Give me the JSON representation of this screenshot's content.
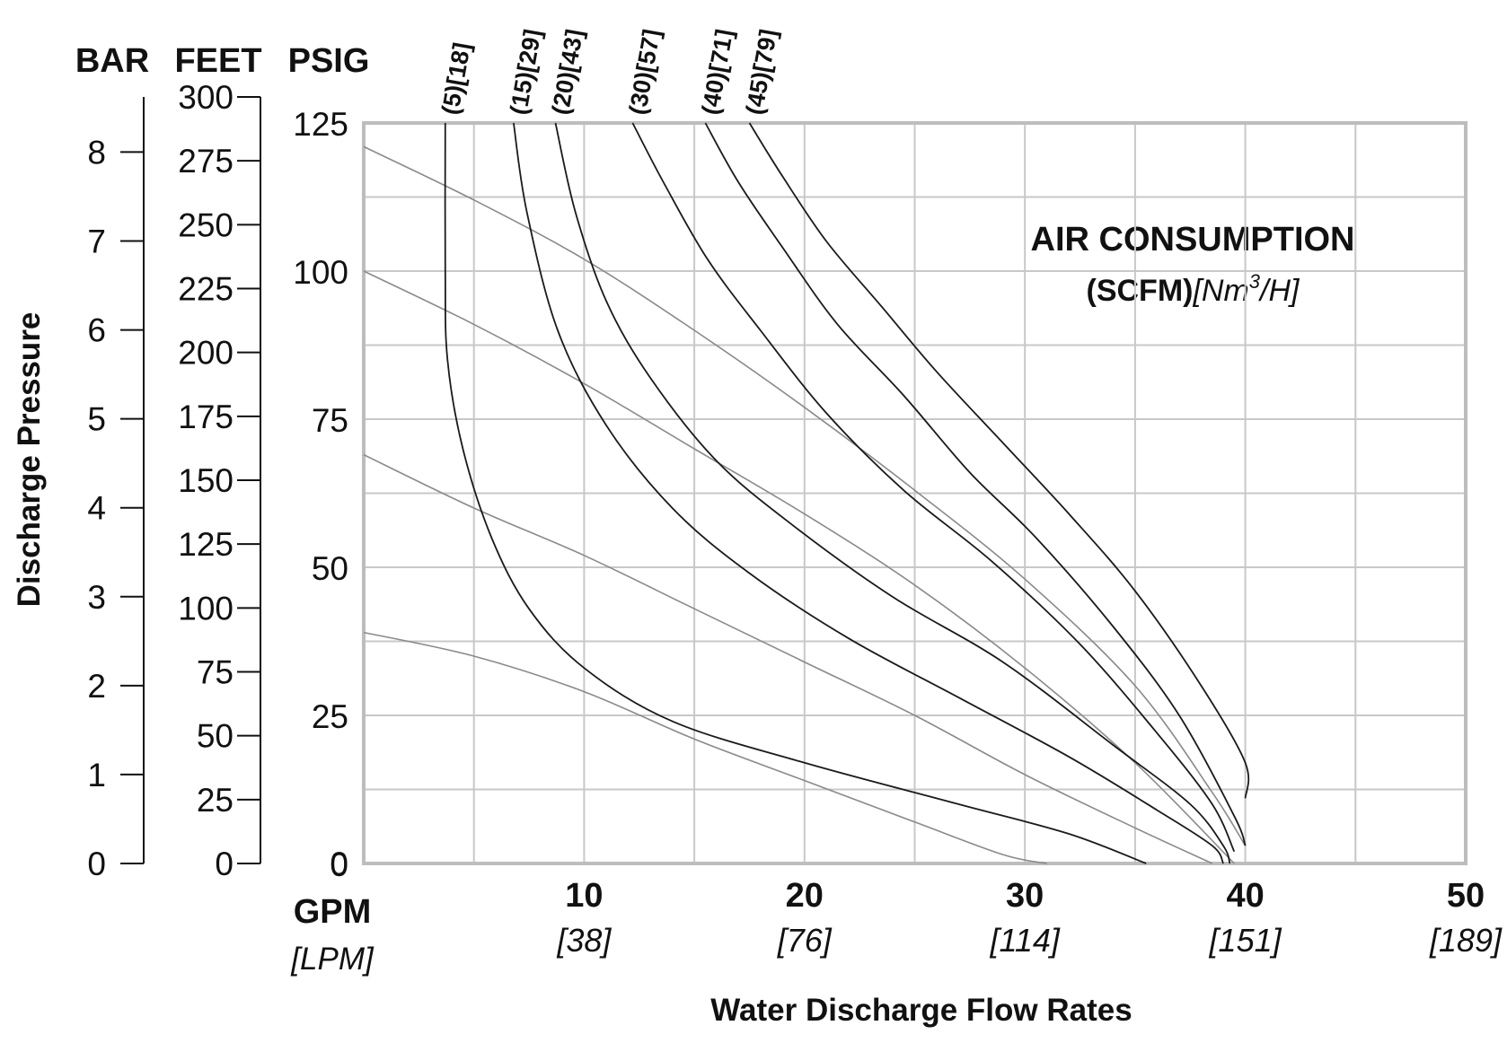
{
  "chart_data": {
    "type": "line",
    "title": "AIR CONSUMPTION",
    "title_units_prefix": "(SCFM)",
    "title_units_suffix": "[Nm",
    "title_units_sup": "3",
    "title_units_end": "/H]",
    "xlabel": "Water Discharge Flow Rates",
    "ylabel": "Discharge Pressure",
    "x_unit_primary": "GPM",
    "x_unit_secondary": "[LPM]",
    "xlim": [
      0,
      50
    ],
    "ylim": [
      0,
      125
    ],
    "grid": true,
    "x_ticks": [
      {
        "value": 10,
        "label": "10",
        "sub": "[38]"
      },
      {
        "value": 20,
        "label": "20",
        "sub": "[76]"
      },
      {
        "value": 30,
        "label": "30",
        "sub": "[114]"
      },
      {
        "value": 40,
        "label": "40",
        "sub": "[151]"
      },
      {
        "value": 50,
        "label": "50",
        "sub": "[189]"
      }
    ],
    "y_axes": [
      {
        "name": "BAR",
        "max": 8.62,
        "ticks": [
          0,
          1,
          2,
          3,
          4,
          5,
          6,
          7,
          8
        ]
      },
      {
        "name": "FEET",
        "max": 300,
        "ticks": [
          0,
          25,
          50,
          75,
          100,
          125,
          150,
          175,
          200,
          225,
          250,
          275,
          300
        ]
      },
      {
        "name": "PSIG",
        "max": 125,
        "ticks": [
          0,
          25,
          50,
          75,
          100,
          125
        ]
      }
    ],
    "air_curves": [
      {
        "name": "(5)[18]",
        "points": [
          [
            3.7,
            125
          ],
          [
            3.7,
            100
          ],
          [
            3.8,
            85
          ],
          [
            4.5,
            70
          ],
          [
            5.8,
            55
          ],
          [
            7.5,
            43
          ],
          [
            10,
            33
          ],
          [
            14,
            24
          ],
          [
            20,
            17
          ],
          [
            27,
            10
          ],
          [
            32,
            5
          ],
          [
            35.5,
            0
          ]
        ]
      },
      {
        "name": "(15)[29]",
        "points": [
          [
            6.8,
            125
          ],
          [
            7.4,
            110
          ],
          [
            8.8,
            90
          ],
          [
            11,
            74
          ],
          [
            14,
            60
          ],
          [
            17.5,
            49
          ],
          [
            22,
            38
          ],
          [
            27,
            28
          ],
          [
            32,
            18
          ],
          [
            36,
            9
          ],
          [
            38.5,
            3
          ],
          [
            39,
            0
          ]
        ]
      },
      {
        "name": "(20)[43]",
        "points": [
          [
            8.7,
            125
          ],
          [
            9.6,
            110
          ],
          [
            11,
            95
          ],
          [
            13,
            82
          ],
          [
            16,
            68
          ],
          [
            19.5,
            57
          ],
          [
            24,
            45
          ],
          [
            29,
            34
          ],
          [
            34,
            20
          ],
          [
            37.5,
            10
          ],
          [
            39,
            3
          ],
          [
            39.3,
            0
          ]
        ]
      },
      {
        "name": "(30)[57]",
        "points": [
          [
            12.2,
            125
          ],
          [
            13.6,
            115
          ],
          [
            15.6,
            102
          ],
          [
            18,
            90
          ],
          [
            21,
            76
          ],
          [
            24.5,
            63
          ],
          [
            28.5,
            51
          ],
          [
            32.5,
            37
          ],
          [
            36,
            22
          ],
          [
            38.5,
            10
          ],
          [
            39.5,
            2
          ]
        ]
      },
      {
        "name": "(40)[71]",
        "points": [
          [
            15.5,
            125
          ],
          [
            17,
            115
          ],
          [
            19,
            104
          ],
          [
            21.5,
            91
          ],
          [
            24.5,
            79
          ],
          [
            27.5,
            66
          ],
          [
            30.5,
            55
          ],
          [
            34,
            40
          ],
          [
            37,
            25
          ],
          [
            39.5,
            8
          ],
          [
            40,
            3
          ]
        ]
      },
      {
        "name": "(45)[79]",
        "points": [
          [
            17.5,
            125
          ],
          [
            19,
            116
          ],
          [
            21,
            105
          ],
          [
            23.5,
            94
          ],
          [
            26,
            83
          ],
          [
            29,
            71
          ],
          [
            32,
            59
          ],
          [
            35,
            46
          ],
          [
            38,
            30
          ],
          [
            40,
            17
          ],
          [
            40,
            11
          ]
        ]
      }
    ],
    "power_curves": [
      {
        "points": [
          [
            0,
            121
          ],
          [
            5,
            112
          ],
          [
            10,
            102
          ],
          [
            15,
            90
          ],
          [
            20,
            77
          ],
          [
            25,
            63
          ],
          [
            30,
            48
          ],
          [
            35,
            30
          ],
          [
            38.5,
            12
          ],
          [
            40,
            3
          ]
        ]
      },
      {
        "points": [
          [
            0,
            100
          ],
          [
            5,
            91
          ],
          [
            10,
            81
          ],
          [
            15,
            70
          ],
          [
            20,
            59
          ],
          [
            25,
            47
          ],
          [
            30,
            33
          ],
          [
            35,
            17
          ],
          [
            39.5,
            0
          ]
        ]
      },
      {
        "points": [
          [
            0,
            69
          ],
          [
            5,
            60
          ],
          [
            10,
            52
          ],
          [
            15,
            43
          ],
          [
            20,
            34
          ],
          [
            25,
            25
          ],
          [
            30,
            15
          ],
          [
            35,
            6
          ],
          [
            38.5,
            0
          ]
        ]
      },
      {
        "points": [
          [
            0,
            39
          ],
          [
            5,
            35
          ],
          [
            10,
            29
          ],
          [
            15,
            21
          ],
          [
            20,
            14
          ],
          [
            25,
            7
          ],
          [
            29,
            1.5
          ],
          [
            31,
            0
          ]
        ]
      }
    ]
  }
}
